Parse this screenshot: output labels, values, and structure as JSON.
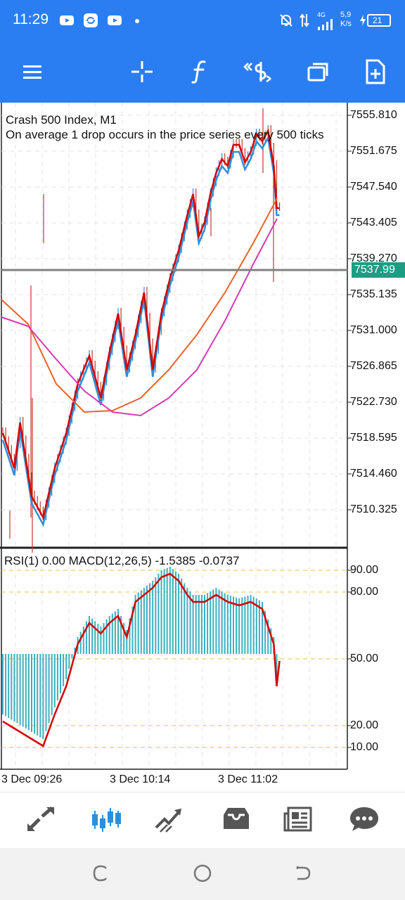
{
  "status": {
    "time": "11:29",
    "net_type": "4G",
    "speed_value": "5,9",
    "speed_unit": "K/s",
    "battery": "21"
  },
  "toolbar": {
    "icons": [
      "menu-icon",
      "crosshair-icon",
      "function-icon",
      "trade-dollar-icon",
      "window-icon",
      "new-document-icon"
    ]
  },
  "chart": {
    "symbol_line": "Crash 500 Index, M1",
    "description": "On average 1 drop occurs in the price series every 500 ticks",
    "current_price": "7537.99",
    "price_ticks": [
      "7555.810",
      "7551.675",
      "7547.540",
      "7543.405",
      "7539.270",
      "7535.135",
      "7531.000",
      "7526.865",
      "7522.730",
      "7518.595",
      "7514.460",
      "7510.325"
    ],
    "indicator_line": "RSI(1) 0.00 MACD(12,26,5) -1.5385 -0.0737",
    "indicator_levels": [
      "90.00",
      "80.00",
      "50.00",
      "20.00",
      "10.00"
    ],
    "time_labels": [
      "3 Dec 09:26",
      "3 Dec 10:14",
      "3 Dec 11:02"
    ],
    "colors": {
      "bull": "#2e8fd8",
      "bear": "#c0392b",
      "ma_fast": "#d50000",
      "ma_mid": "#e8632a",
      "ma_slow": "#d63bb0",
      "hist": "#3bb0c0",
      "level": "#e6c43a",
      "current_line": "#808080"
    }
  },
  "bottom_nav": {
    "icons": [
      "quotes-icon",
      "chart-icon",
      "trade-icon",
      "history-icon",
      "news-icon",
      "chat-icon"
    ]
  },
  "system_nav": {
    "icons": [
      "recent-apps-icon",
      "home-icon",
      "back-icon"
    ]
  }
}
